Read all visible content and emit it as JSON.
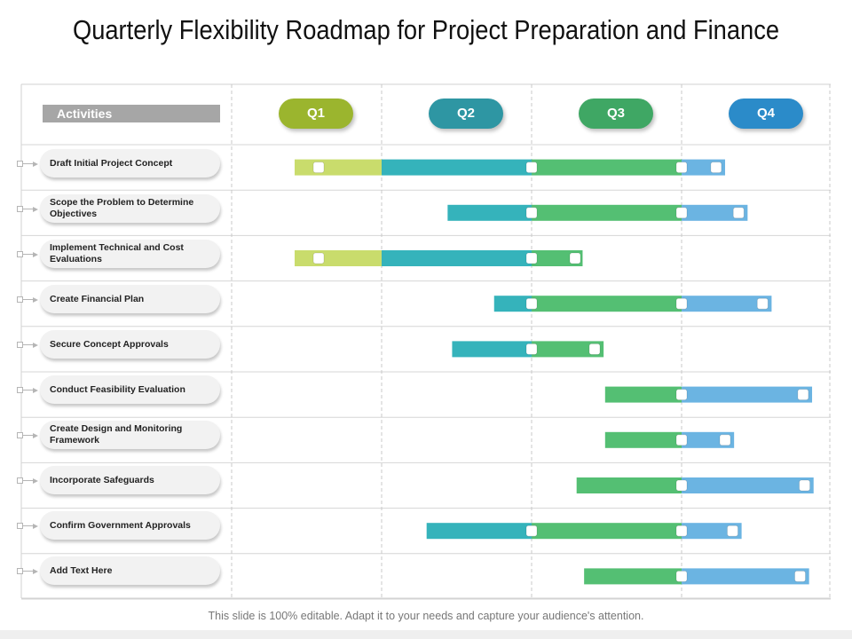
{
  "title": "Quarterly Flexibility Roadmap for Project Preparation and Finance",
  "header": {
    "activities_label": "Activities"
  },
  "quarters": [
    {
      "label": "Q1",
      "color": "#9bb52e"
    },
    {
      "label": "Q2",
      "color": "#2e96a3"
    },
    {
      "label": "Q3",
      "color": "#3fa764"
    },
    {
      "label": "Q4",
      "color": "#2b8bc9"
    }
  ],
  "bar_colors": {
    "Q1": "#c9dc6c",
    "Q2": "#35b3bb",
    "Q3": "#54bf73",
    "Q4": "#6bb4e2"
  },
  "activities": [
    {
      "label": "Draft Initial Project Concept",
      "start": 0.42,
      "end": 3.29,
      "milestones": [
        0.58,
        2.0,
        3.0,
        3.23
      ]
    },
    {
      "label": "Scope the Problem to Determine Objectives",
      "start": 1.44,
      "end": 3.44,
      "milestones": [
        2.0,
        3.0,
        3.38
      ]
    },
    {
      "label": "Implement Technical and Cost Evaluations",
      "start": 0.42,
      "end": 2.34,
      "milestones": [
        0.58,
        2.0,
        2.29
      ]
    },
    {
      "label": "Create Financial Plan",
      "start": 1.75,
      "end": 3.6,
      "milestones": [
        2.0,
        3.0,
        3.54
      ]
    },
    {
      "label": "Secure Concept Approvals",
      "start": 1.47,
      "end": 2.48,
      "milestones": [
        2.0,
        2.42
      ]
    },
    {
      "label": "Conduct Feasibility Evaluation",
      "start": 2.49,
      "end": 3.87,
      "milestones": [
        3.0,
        3.81
      ]
    },
    {
      "label": "Create Design and Monitoring Framework",
      "start": 2.49,
      "end": 3.35,
      "milestones": [
        3.0,
        3.29
      ]
    },
    {
      "label": "Incorporate Safeguards",
      "start": 2.3,
      "end": 3.88,
      "milestones": [
        3.0,
        3.82
      ]
    },
    {
      "label": "Confirm Government Approvals",
      "start": 1.3,
      "end": 3.4,
      "milestones": [
        2.0,
        3.0,
        3.34
      ]
    },
    {
      "label": "Add Text Here",
      "start": 2.35,
      "end": 3.85,
      "milestones": [
        3.0,
        3.79
      ]
    }
  ],
  "footer": "This slide is 100% editable. Adapt it to your needs and capture your audience's attention."
}
